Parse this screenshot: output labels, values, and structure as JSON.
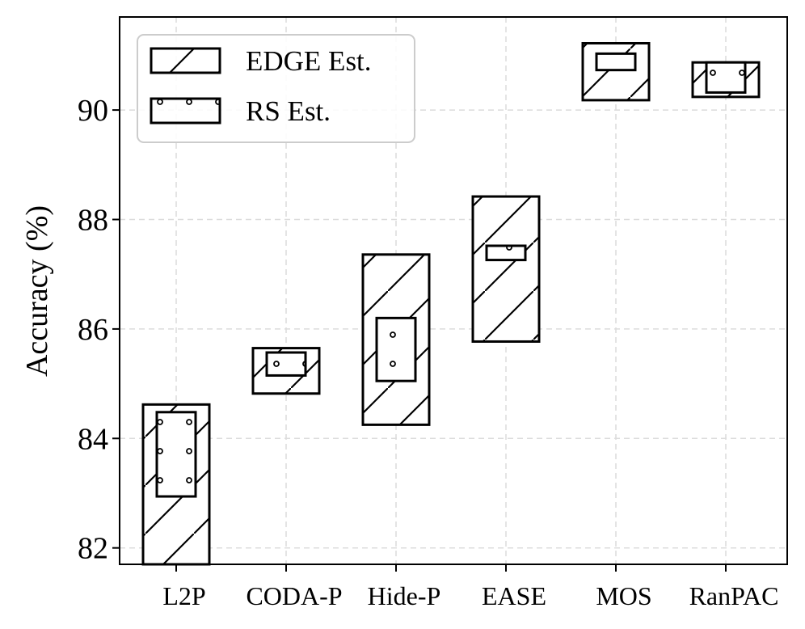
{
  "chart_data": {
    "type": "range-box",
    "categories": [
      "L2P",
      "CODA-P",
      "Hide-P",
      "EASE",
      "MOS",
      "RanPAC"
    ],
    "ylabel": "Accuracy (%)",
    "xlabel": "",
    "ylim": [
      81.7,
      91.7
    ],
    "yticks": [
      82,
      84,
      86,
      88,
      90
    ],
    "grid": true,
    "legend_position": "top-left",
    "series": [
      {
        "name": "EDGE Est.",
        "hatch": "diagonal-lines",
        "ranges": [
          [
            81.7,
            84.62
          ],
          [
            84.82,
            85.65
          ],
          [
            84.25,
            87.36
          ],
          [
            85.77,
            88.42
          ],
          [
            90.18,
            91.22
          ],
          [
            90.24,
            90.87
          ]
        ]
      },
      {
        "name": "RS Est.",
        "hatch": "small-circles",
        "ranges": [
          [
            82.94,
            84.48
          ],
          [
            85.15,
            85.57
          ],
          [
            85.05,
            86.2
          ],
          [
            87.26,
            87.52
          ],
          [
            90.73,
            91.03
          ],
          [
            90.32,
            90.87
          ]
        ]
      }
    ]
  }
}
